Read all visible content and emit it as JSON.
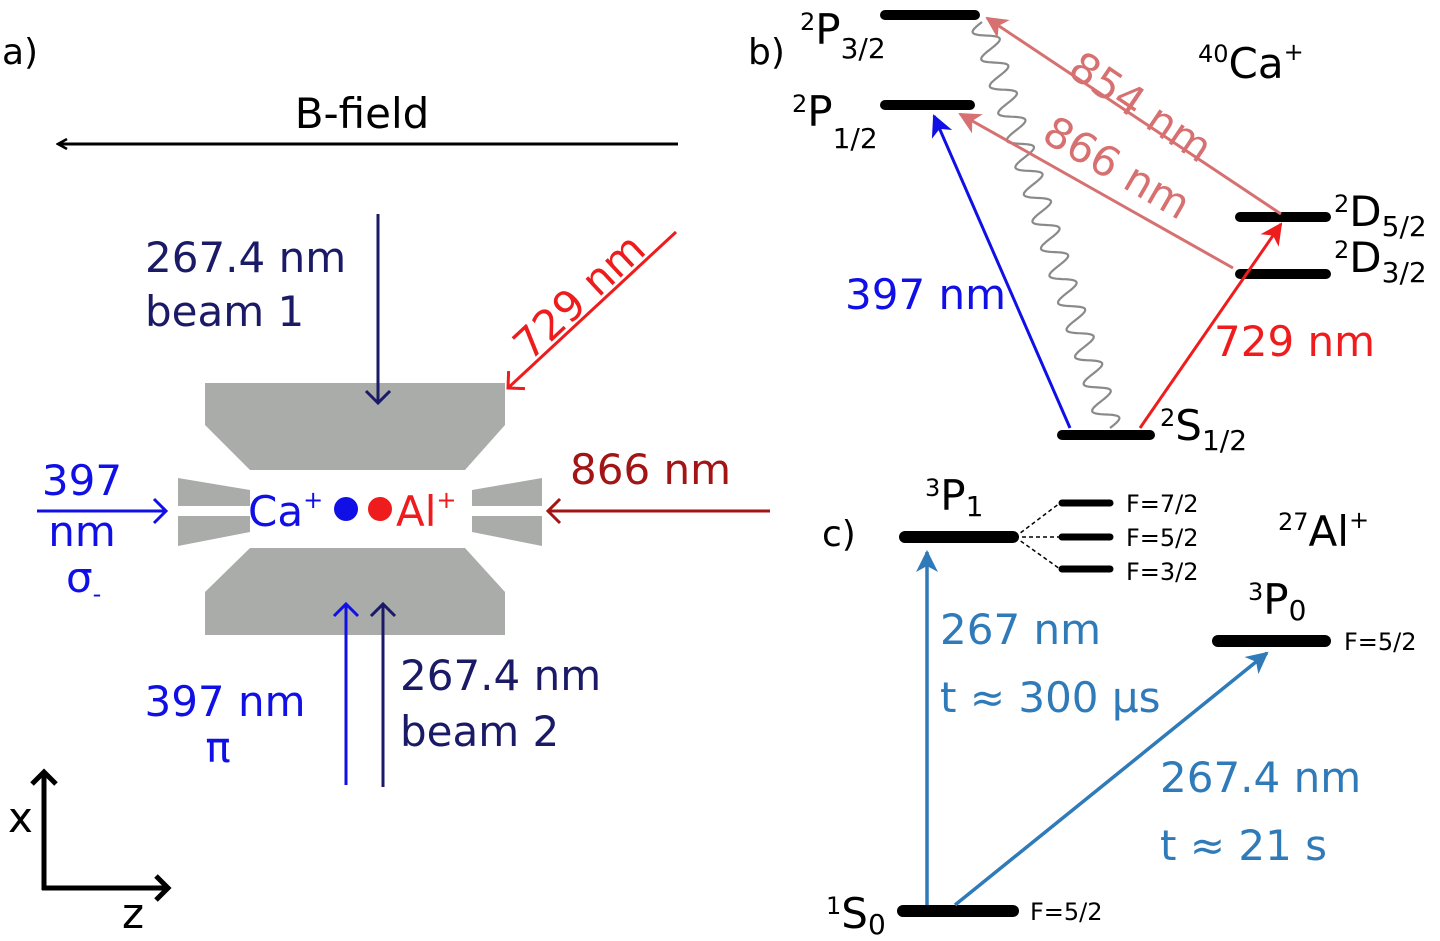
{
  "colors": {
    "navy": "#1a1a66",
    "blue": "#1010e6",
    "red": "#ee1c1c",
    "darkred": "#a31515",
    "salmon": "#d77070",
    "steel": "#2f7ab8",
    "gray": "#a9aca9",
    "black": "#000000",
    "wavy": "#8a8a8a"
  },
  "panel_a": {
    "label": "a)",
    "bfield": "B-field",
    "beam1_l1": "267.4 nm",
    "beam1_l2": "beam 1",
    "beam2_l1": "267.4 nm",
    "beam2_l2": "beam 2",
    "red729": "729 nm",
    "red866": "866 nm",
    "blue397_l1": "397",
    "blue397_l2": "nm",
    "blue397_pol": "σ",
    "blue397_pol_sub": "-",
    "blue397pi_l1": "397 nm",
    "blue397pi_l2": "π",
    "ca_label": "Ca",
    "al_label": "Al",
    "ion_charge": "+",
    "axis_x": "x",
    "axis_z": "z"
  },
  "panel_b": {
    "label": "b)",
    "species_mass": "40",
    "species": "Ca",
    "species_charge": "+",
    "p32_pre": "2",
    "p32_main": "P",
    "p32_sub": "3/2",
    "p12_pre": "2",
    "p12_main": "P",
    "p12_sub": "1/2",
    "d52_pre": "2",
    "d52_main": "D",
    "d52_sub": "5/2",
    "d32_pre": "2",
    "d32_main": "D",
    "d32_sub": "3/2",
    "s12_pre": "2",
    "s12_main": "S",
    "s12_sub": "1/2",
    "t397": "397 nm",
    "t729": "729 nm",
    "t854": "854 nm",
    "t866": "866 nm"
  },
  "panel_c": {
    "label": "c)",
    "species_mass": "27",
    "species": "Al",
    "species_charge": "+",
    "p1_pre": "3",
    "p1_main": "P",
    "p1_sub": "1",
    "p0_pre": "3",
    "p0_main": "P",
    "p0_sub": "0",
    "s0_pre": "1",
    "s0_main": "S",
    "s0_sub": "0",
    "hf1": "F=7/2",
    "hf2": "F=5/2",
    "hf3": "F=3/2",
    "p0_f": "F=5/2",
    "s0_f": "F=5/2",
    "t267_l1": "267 nm",
    "t267_l2": "t ≈ 300 μs",
    "t2674_l1": "267.4 nm",
    "t2674_l2": "t ≈ 21 s"
  }
}
